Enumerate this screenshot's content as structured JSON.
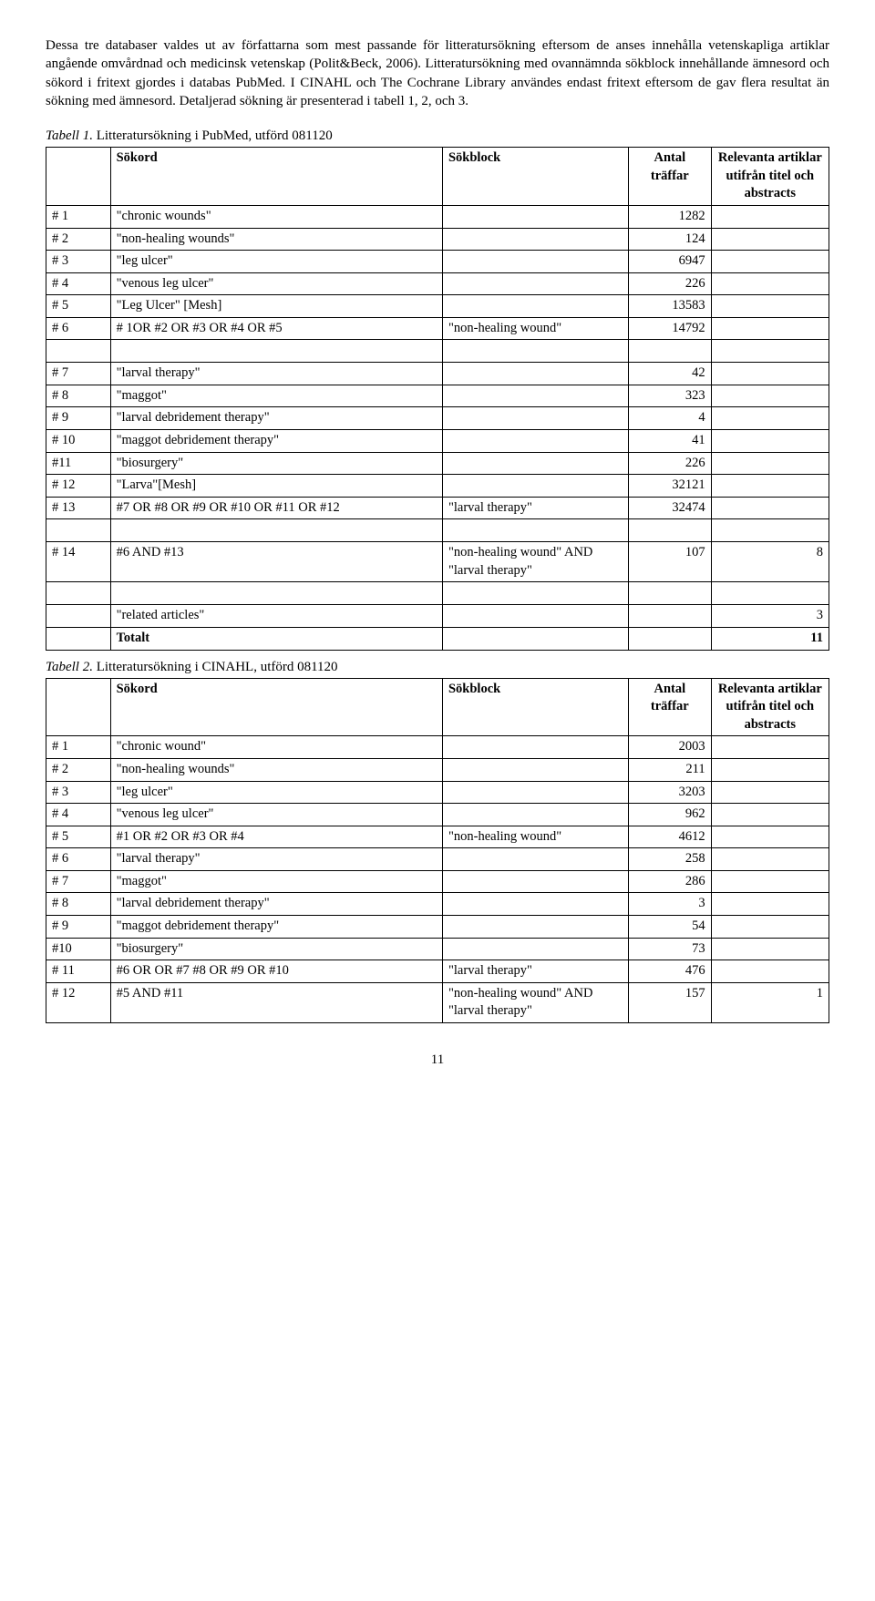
{
  "paragraphs": {
    "p1": "Dessa tre databaser valdes ut av författarna som mest passande för litteratursökning eftersom de anses innehålla vetenskapliga artiklar angående omvårdnad och medicinsk vetenskap (Polit&Beck, 2006). Litteratursökning med ovannämnda sökblock innehållande ämnesord och sökord i fritext gjordes i databas PubMed. I CINAHL och The Cochrane Library användes endast fritext eftersom de gav flera resultat än sökning med ämnesord. Detaljerad sökning är presenterad i tabell 1, 2, och 3."
  },
  "table1": {
    "caption_prefix": "Tabell 1.",
    "caption_rest": " Litteratursökning i PubMed, utförd 081120",
    "headers": {
      "sokord": "Sökord",
      "sokblock": "Sökblock",
      "antal": "Antal träffar",
      "rele": "Relevanta artiklar utifrån titel och abstracts"
    },
    "rows_a": [
      {
        "id": "# 1",
        "sokord": "\"chronic wounds\"",
        "block": "",
        "antal": "1282"
      },
      {
        "id": "# 2",
        "sokord": "\"non-healing wounds\"",
        "block": "",
        "antal": "124"
      },
      {
        "id": "# 3",
        "sokord": "\"leg ulcer\"",
        "block": "",
        "antal": "6947"
      },
      {
        "id": "# 4",
        "sokord": "\"venous leg ulcer\"",
        "block": "",
        "antal": "226"
      },
      {
        "id": "# 5",
        "sokord": "\"Leg Ulcer\" [Mesh]",
        "block": "",
        "antal": "13583"
      },
      {
        "id": "#  6",
        "sokord": "# 1OR #2 OR #3 OR #4 OR #5",
        "block": "\"non-healing wound\"",
        "antal": "14792"
      }
    ],
    "rows_b": [
      {
        "id": "# 7",
        "sokord": "\"larval therapy\"",
        "block": "",
        "antal": "42"
      },
      {
        "id": "# 8",
        "sokord": "\"maggot\"",
        "block": "",
        "antal": "323"
      },
      {
        "id": "# 9",
        "sokord": "\"larval debridement therapy\"",
        "block": "",
        "antal": "4"
      },
      {
        "id": "# 10",
        "sokord": "\"maggot debridement therapy\"",
        "block": "",
        "antal": "41"
      },
      {
        "id": "#11",
        "sokord": "\"biosurgery\"",
        "block": "",
        "antal": "226"
      },
      {
        "id": "# 12",
        "sokord": "\"Larva\"[Mesh]",
        "block": "",
        "antal": "32121"
      },
      {
        "id": "# 13",
        "sokord": "#7 OR #8 OR #9 OR #10 OR #11 OR #12",
        "block": "\"larval therapy\"",
        "antal": "32474"
      }
    ],
    "rows_c": [
      {
        "id": "# 14",
        "sokord": "#6 AND #13",
        "block": "\"non-healing wound\" AND \"larval therapy\"",
        "antal": "107",
        "rele": "8"
      }
    ],
    "rows_d": [
      {
        "id": "",
        "sokord": "\"related articles\"",
        "block": "",
        "antal": "",
        "rele": "3"
      },
      {
        "id": "",
        "sokord": "Totalt",
        "block": "",
        "antal": "",
        "rele": "11",
        "bold": true
      }
    ]
  },
  "table2": {
    "caption_prefix": "Tabell 2.",
    "caption_rest": " Litteratursökning i CINAHL, utförd 081120",
    "headers": {
      "sokord": "Sökord",
      "sokblock": "Sökblock",
      "antal": "Antal träffar",
      "rele": "Relevanta artiklar utifrån titel och abstracts"
    },
    "rows": [
      {
        "id": "# 1",
        "sokord": "\"chronic wound\"",
        "block": "",
        "antal": "2003"
      },
      {
        "id": "# 2",
        "sokord": "\"non-healing wounds\"",
        "block": "",
        "antal": "211"
      },
      {
        "id": "# 3",
        "sokord": "\"leg ulcer\"",
        "block": "",
        "antal": "3203"
      },
      {
        "id": "# 4",
        "sokord": "\"venous leg ulcer\"",
        "block": "",
        "antal": "962"
      },
      {
        "id": "# 5",
        "sokord": "#1 OR #2 OR #3 OR #4",
        "block": "\"non-healing wound\"",
        "antal": "4612"
      },
      {
        "id": "# 6",
        "sokord": "\"larval therapy\"",
        "block": "",
        "antal": "258"
      },
      {
        "id": "# 7",
        "sokord": "\"maggot\"",
        "block": "",
        "antal": "286"
      },
      {
        "id": "# 8",
        "sokord": "\"larval debridement therapy\"",
        "block": "",
        "antal": "3"
      },
      {
        "id": "# 9",
        "sokord": "\"maggot debridement therapy\"",
        "block": "",
        "antal": "54"
      },
      {
        "id": "#10",
        "sokord": "\"biosurgery\"",
        "block": "",
        "antal": "73"
      },
      {
        "id": "# 11",
        "sokord": "#6 OR OR #7 #8 OR #9 OR #10",
        "block": "\"larval therapy\"",
        "antal": "476"
      },
      {
        "id": "# 12",
        "sokord": "#5 AND #11",
        "block": "\"non-healing wound\" AND \"larval therapy\"",
        "antal": "157",
        "rele": "1"
      }
    ]
  },
  "pageNumber": "11"
}
